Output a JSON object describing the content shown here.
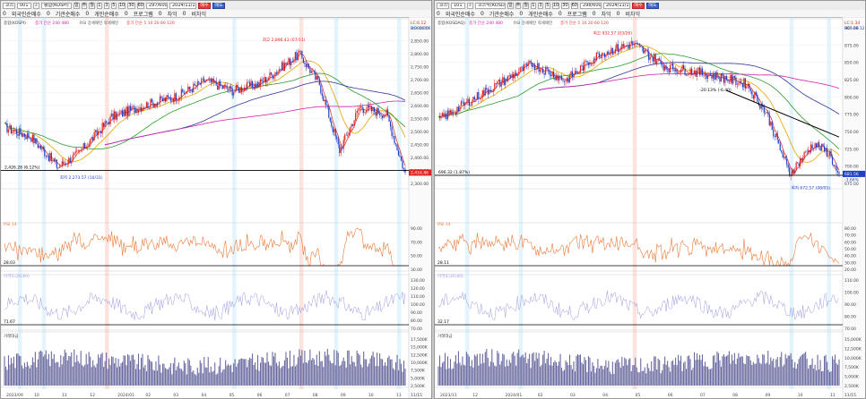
{
  "left": {
    "toolbar": {
      "mode_label": "코스피",
      "code": "001",
      "name": "종합(KOSPI)",
      "period_buttons": [
        "틱",
        "분",
        "일",
        "주",
        "월",
        "년"
      ],
      "number_buttons": [
        "1",
        "3",
        "5",
        "10",
        "15",
        "30",
        "60",
        "120",
        "240"
      ],
      "count": "297/600",
      "date": "2024/11/15",
      "buy_label": "매수",
      "sell_label": "매도"
    },
    "subbar": {
      "items": [
        "0",
        "외국인순매수",
        "0",
        "기관순매수",
        "0",
        "개인순매수",
        "0",
        "프로그램",
        "0",
        "차익",
        "0",
        "비차익"
      ]
    },
    "legend": {
      "main": "종합(KOSPI)",
      "ma_label": "종가 단순 240 480",
      "indicators": "RSI 강세패턴 약세패턴",
      "ma2_label": "종가 단순 5 10 20 60 120"
    },
    "price_labels": [
      "2,900.00",
      "2,850.00",
      "2,800.00",
      "2,750.00",
      "2,700.00",
      "2,650.00",
      "2,600.00",
      "2,550.00",
      "2,500.00",
      "2,450.00",
      "2,400.00",
      "2,350.00",
      "2,300.00"
    ],
    "high_annotation": "최고 2,896.43 (07/11)",
    "low_annotation": "최저 2,273.57 (10/31)",
    "support_label": "2,426.28 (6.12%)",
    "current_price": "2,416.86",
    "top_right_code": "LC:6.12",
    "top_right_code2": "HC:-16.56",
    "rsi_title": "RSI 14",
    "rsi_value": "28.03",
    "rsi_labels": [
      "90.00",
      "70.00",
      "50.00",
      "30.00"
    ],
    "ind2_title": "이격도(20,60)",
    "ind2_value": "71.67",
    "ind2_labels": [
      "130.00",
      "120.00",
      "110.00",
      "100.00",
      "90.00",
      "80.00",
      "70.00"
    ],
    "vol_title": "거래대금",
    "vol_labels": [
      "17,500K",
      "15,000K",
      "12,500K",
      "10,000K",
      "7,500K",
      "5,000K",
      "2,500K"
    ],
    "x_labels": [
      "2023/09",
      "10",
      "11",
      "12",
      "2024/01",
      "02",
      "03",
      "04",
      "05",
      "06",
      "07",
      "08",
      "09",
      "10",
      "11"
    ],
    "x_extra": "11/15"
  },
  "right": {
    "toolbar": {
      "mode_label": "코스닥",
      "code": "101",
      "name": "코스닥(KOSDAQ)",
      "period_buttons": [
        "틱",
        "분",
        "일",
        "주",
        "월",
        "년"
      ],
      "number_buttons": [
        "1",
        "3",
        "5",
        "10",
        "15",
        "30",
        "60",
        "120",
        "240"
      ],
      "count": "298/600",
      "date": "2024/11/15",
      "buy_label": "매수",
      "sell_label": "매도"
    },
    "subbar": {
      "items": [
        "0",
        "외국인순매수",
        "0",
        "기관순매수",
        "0",
        "개인순매수",
        "0",
        "프로그램",
        "0",
        "차익",
        "0",
        "비차익"
      ]
    },
    "legend": {
      "main": "종합(KOSDAQ)",
      "ma_label": "종가 단순 240 480",
      "indicators": "RSI 강세패턴 약세패턴",
      "ma2_label": "종가 단순 5 10 20 60 120"
    },
    "price_labels": [
      "900.00",
      "875.00",
      "850.00",
      "825.00",
      "800.00",
      "775.00",
      "750.00",
      "725.00",
      "700.00",
      "675.00"
    ],
    "high_annotation": "최고 932.57 (03/26)",
    "low_annotation": "최저 672.57 (08/05)",
    "trend_label": "-20.13% (-6.40)",
    "support_label": "696.32 (1.87%)",
    "current_price": "681.56",
    "current_price2": "-3.66%",
    "top_right_code": "LC:1.34",
    "top_right_code2": "HC:-28.12",
    "rsi_title": "RSI 14",
    "rsi_value": "28.11",
    "rsi_labels": [
      "80.00",
      "70.00",
      "60.00",
      "50.00",
      "40.00",
      "30.00",
      "20.00"
    ],
    "ind2_title": "이격도(20,60)",
    "ind2_value": "32.17",
    "ind2_labels": [
      "110.00",
      "100.00",
      "90.00",
      "80.00",
      "70.00"
    ],
    "vol_title": "거래대금",
    "vol_labels": [
      "15,000K",
      "12,500K",
      "10,000K",
      "7,500K",
      "5,000K",
      "2,500K"
    ],
    "x_labels": [
      "2023/11",
      "12",
      "2024/01",
      "02",
      "03",
      "04",
      "05",
      "06",
      "07",
      "08",
      "09",
      "10",
      "11"
    ],
    "x_extra": "11/15"
  },
  "colors": {
    "up": "#e0211c",
    "down": "#1f3fc8",
    "ma5": "#e03a3a",
    "ma20": "#e8a400",
    "ma60": "#2b9b2b",
    "ma120": "#333399",
    "ma240": "#cc22aa",
    "rsi": "#e87a3a",
    "ind2": "#9a9ae0",
    "volume": "#6a6aa0"
  }
}
